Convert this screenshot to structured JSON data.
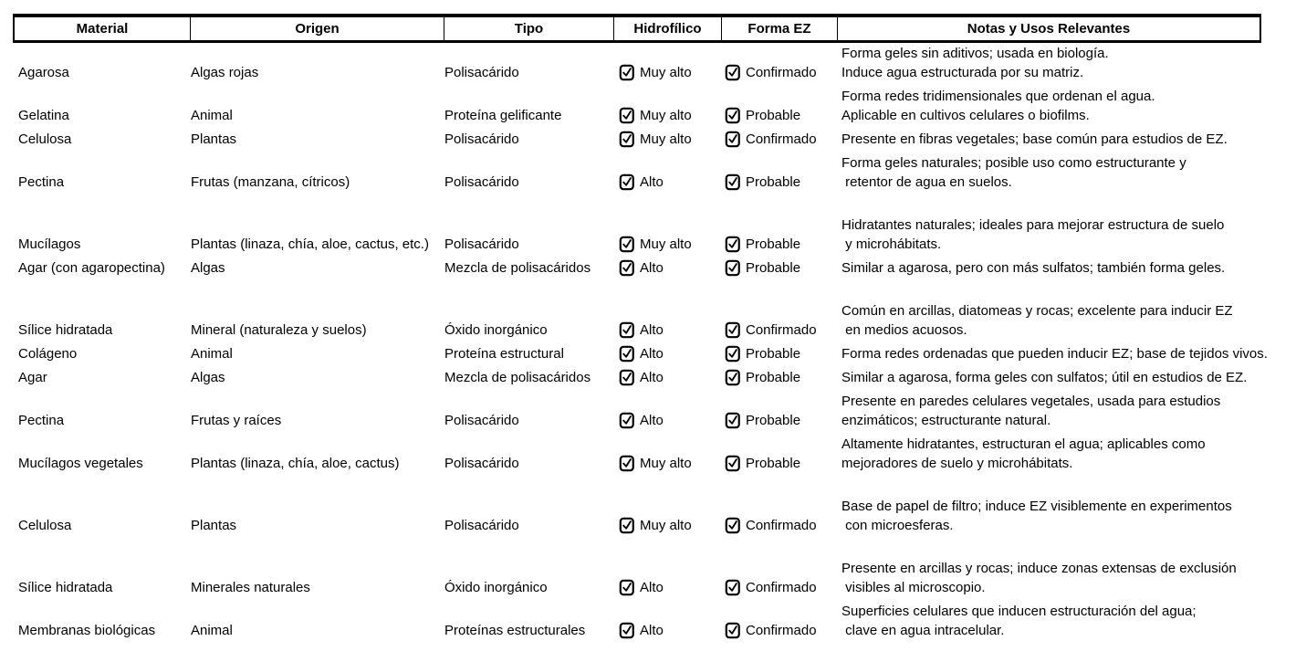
{
  "table": {
    "headers": [
      "Material",
      "Origen",
      "Tipo",
      "Hidrofílico",
      "Forma EZ",
      "Notas y Usos Relevantes"
    ],
    "checkbox_state": "checked",
    "text_color": "#000000",
    "rows": [
      {
        "material": "Agarosa",
        "origen": "Algas rojas",
        "tipo": "Polisacárido",
        "hidrofilico": "Muy alto",
        "forma_ez": "Confirmado",
        "notas": [
          "Forma geles sin aditivos; usada en biología.",
          "Induce agua estructurada por su matriz."
        ]
      },
      {
        "material": "Gelatina",
        "origen": "Animal",
        "tipo": "Proteína gelificante",
        "hidrofilico": "Muy alto",
        "forma_ez": "Probable",
        "notas": [
          "Forma redes tridimensionales que ordenan el agua.",
          "Aplicable en cultivos celulares o biofilms."
        ]
      },
      {
        "material": "Celulosa",
        "origen": "Plantas",
        "tipo": "Polisacárido",
        "hidrofilico": "Muy alto",
        "forma_ez": "Confirmado",
        "notas": [
          "Presente en fibras vegetales; base común para estudios de EZ."
        ]
      },
      {
        "material": "Pectina",
        "origen": "Frutas (manzana, cítricos)",
        "tipo": "Polisacárido",
        "hidrofilico": "Alto",
        "forma_ez": "Probable",
        "notas": [
          "Forma geles naturales; posible uso como estructurante y",
          " retentor de agua en suelos."
        ]
      },
      {
        "material": "Mucílagos",
        "origen": "Plantas (linaza, chía, aloe, cactus, etc.)",
        "tipo": "Polisacárido",
        "hidrofilico": "Muy alto",
        "forma_ez": "Probable",
        "notas": [
          "",
          "Hidratantes naturales; ideales para mejorar estructura de suelo",
          " y microhábitats."
        ]
      },
      {
        "material": "Agar (con agaropectina)",
        "origen": "Algas",
        "tipo": "Mezcla de polisacáridos",
        "hidrofilico": "Alto",
        "forma_ez": "Probable",
        "notas": [
          "Similar a agarosa, pero con más sulfatos; también forma geles."
        ]
      },
      {
        "material": "Sílice hidratada",
        "origen": "Mineral (naturaleza y suelos)",
        "tipo": "Óxido inorgánico",
        "hidrofilico": "Alto",
        "forma_ez": "Confirmado",
        "notas": [
          "",
          "Común en arcillas, diatomeas y rocas; excelente para inducir EZ",
          " en medios acuosos."
        ]
      },
      {
        "material": "Colágeno",
        "origen": "Animal",
        "tipo": "Proteína estructural",
        "hidrofilico": "Alto",
        "forma_ez": "Probable",
        "notas": [
          "Forma redes ordenadas que pueden inducir EZ; base de tejidos vivos."
        ]
      },
      {
        "material": "Agar",
        "origen": "Algas",
        "tipo": "Mezcla de polisacáridos",
        "hidrofilico": "Alto",
        "forma_ez": "Probable",
        "notas": [
          "Similar a agarosa, forma geles con sulfatos; útil en estudios de EZ."
        ]
      },
      {
        "material": "Pectina",
        "origen": "Frutas y raíces",
        "tipo": "Polisacárido",
        "hidrofilico": "Alto",
        "forma_ez": "Probable",
        "notas": [
          "Presente en paredes celulares vegetales, usada para estudios",
          "enzimáticos; estructurante natural."
        ]
      },
      {
        "material": "Mucílagos vegetales",
        "origen": "Plantas (linaza, chía, aloe, cactus)",
        "tipo": "Polisacárido",
        "hidrofilico": "Muy alto",
        "forma_ez": "Probable",
        "notas": [
          "Altamente hidratantes, estructuran el agua; aplicables como",
          "mejoradores de suelo y microhábitats."
        ]
      },
      {
        "material": "Celulosa",
        "origen": "Plantas",
        "tipo": "Polisacárido",
        "hidrofilico": "Muy alto",
        "forma_ez": "Confirmado",
        "notas": [
          "",
          "Base de papel de filtro; induce EZ visiblemente en experimentos",
          " con microesferas."
        ]
      },
      {
        "material": "Sílice hidratada",
        "origen": "Minerales naturales",
        "tipo": "Óxido inorgánico",
        "hidrofilico": "Alto",
        "forma_ez": "Confirmado",
        "notas": [
          "",
          "Presente en arcillas y rocas; induce zonas extensas de exclusión",
          " visibles al microscopio."
        ]
      },
      {
        "material": "Membranas biológicas",
        "origen": "Animal",
        "tipo": "Proteínas estructurales",
        "hidrofilico": "Alto",
        "forma_ez": "Confirmado",
        "notas": [
          "Superficies celulares que inducen estructuración del agua;",
          " clave en agua intracelular."
        ]
      }
    ]
  }
}
